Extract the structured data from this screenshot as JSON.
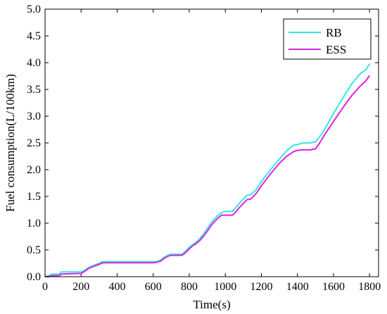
{
  "chart_data": {
    "type": "line",
    "title": "",
    "xlabel": "Time(s)",
    "ylabel": "Fuel consumption(L/100km)",
    "xlim": [
      0,
      1850
    ],
    "ylim": [
      0,
      5.0
    ],
    "xticks": [
      "0",
      "200",
      "400",
      "600",
      "800",
      "1000",
      "1200",
      "1400",
      "1600",
      "1800"
    ],
    "yticks": [
      "0.0",
      "0.5",
      "1.0",
      "1.5",
      "2.0",
      "2.5",
      "3.0",
      "3.5",
      "4.0",
      "4.5",
      "5.0"
    ],
    "grid": false,
    "legend_position": "top-right",
    "series": [
      {
        "name": "RB",
        "color": "#33e6e6",
        "x": [
          0,
          20,
          40,
          80,
          90,
          200,
          220,
          240,
          260,
          300,
          320,
          400,
          500,
          600,
          620,
          640,
          660,
          680,
          700,
          720,
          760,
          780,
          800,
          820,
          840,
          860,
          880,
          900,
          920,
          940,
          960,
          980,
          1000,
          1040,
          1060,
          1080,
          1100,
          1120,
          1140,
          1170,
          1200,
          1250,
          1300,
          1340,
          1380,
          1400,
          1430,
          1470,
          1500,
          1520,
          1550,
          1600,
          1650,
          1700,
          1750,
          1780,
          1800
        ],
        "y": [
          0.0,
          0.02,
          0.05,
          0.05,
          0.09,
          0.09,
          0.12,
          0.17,
          0.2,
          0.25,
          0.28,
          0.28,
          0.28,
          0.28,
          0.28,
          0.31,
          0.36,
          0.4,
          0.42,
          0.42,
          0.42,
          0.48,
          0.55,
          0.6,
          0.65,
          0.72,
          0.8,
          0.9,
          1.0,
          1.08,
          1.15,
          1.2,
          1.22,
          1.22,
          1.3,
          1.38,
          1.45,
          1.52,
          1.53,
          1.62,
          1.78,
          2.0,
          2.2,
          2.35,
          2.46,
          2.47,
          2.5,
          2.5,
          2.52,
          2.6,
          2.75,
          3.05,
          3.33,
          3.6,
          3.8,
          3.87,
          3.98
        ]
      },
      {
        "name": "ESS",
        "color": "#dd22dd",
        "x": [
          0,
          20,
          40,
          80,
          90,
          200,
          220,
          240,
          260,
          300,
          320,
          400,
          500,
          600,
          620,
          640,
          660,
          680,
          700,
          720,
          760,
          780,
          800,
          820,
          840,
          860,
          880,
          900,
          920,
          940,
          960,
          980,
          1000,
          1040,
          1060,
          1080,
          1100,
          1120,
          1140,
          1170,
          1200,
          1250,
          1300,
          1340,
          1380,
          1400,
          1430,
          1470,
          1500,
          1520,
          1550,
          1600,
          1650,
          1700,
          1750,
          1780,
          1800
        ],
        "y": [
          0.0,
          0.0,
          0.02,
          0.02,
          0.05,
          0.06,
          0.1,
          0.15,
          0.18,
          0.23,
          0.26,
          0.26,
          0.26,
          0.26,
          0.27,
          0.29,
          0.34,
          0.38,
          0.4,
          0.4,
          0.4,
          0.45,
          0.52,
          0.58,
          0.62,
          0.68,
          0.76,
          0.85,
          0.95,
          1.03,
          1.1,
          1.15,
          1.15,
          1.15,
          1.22,
          1.3,
          1.37,
          1.44,
          1.45,
          1.55,
          1.7,
          1.92,
          2.12,
          2.25,
          2.34,
          2.36,
          2.37,
          2.37,
          2.39,
          2.48,
          2.65,
          2.9,
          3.15,
          3.38,
          3.57,
          3.66,
          3.76
        ]
      }
    ]
  }
}
